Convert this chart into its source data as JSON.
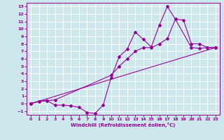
{
  "xlabel": "Windchill (Refroidissement éolien,°C)",
  "xlim": [
    -0.5,
    23.5
  ],
  "ylim": [
    -1.5,
    13.5
  ],
  "xticks": [
    0,
    1,
    2,
    3,
    4,
    5,
    6,
    7,
    8,
    9,
    10,
    11,
    12,
    13,
    14,
    15,
    16,
    17,
    18,
    19,
    20,
    21,
    22,
    23
  ],
  "yticks": [
    -1,
    0,
    1,
    2,
    3,
    4,
    5,
    6,
    7,
    8,
    9,
    10,
    11,
    12,
    13
  ],
  "bg_color": "#cce8ed",
  "line_color": "#990099",
  "grid_color": "#ffffff",
  "line1_x": [
    0,
    1,
    2,
    3,
    4,
    5,
    6,
    7,
    8,
    9,
    10,
    11,
    12,
    13,
    14,
    15,
    16,
    17,
    18,
    20,
    21,
    22,
    23
  ],
  "line1_y": [
    0.0,
    0.3,
    0.4,
    -0.2,
    -0.2,
    -0.3,
    -0.5,
    -1.2,
    -1.3,
    -0.2,
    3.5,
    6.3,
    7.3,
    9.6,
    8.6,
    7.6,
    10.5,
    13.0,
    11.3,
    7.5,
    7.4,
    7.5,
    7.5
  ],
  "line2_x": [
    0,
    1,
    2,
    3,
    10,
    11,
    12,
    13,
    14,
    15,
    16,
    17,
    18,
    19,
    20,
    21,
    22,
    23
  ],
  "line2_y": [
    0.0,
    0.3,
    0.4,
    0.5,
    3.8,
    5.0,
    6.0,
    7.0,
    7.5,
    7.5,
    8.0,
    8.7,
    11.3,
    11.2,
    8.0,
    8.0,
    7.5,
    7.5
  ],
  "line3_x": [
    0,
    23
  ],
  "line3_y": [
    0.0,
    7.5
  ]
}
